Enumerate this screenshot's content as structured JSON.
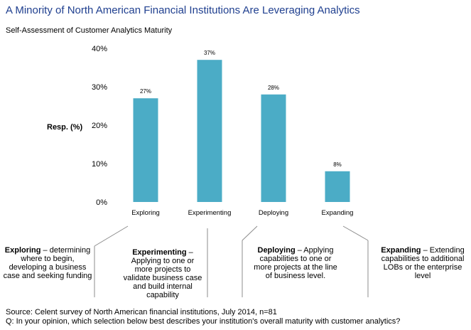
{
  "title": "A Minority of North American Financial Institutions Are Leveraging Analytics",
  "subtitle": "Self-Assessment of Customer Analytics Maturity",
  "chart_data": {
    "type": "bar",
    "categories": [
      "Exploring",
      "Experimenting",
      "Deploying",
      "Expanding"
    ],
    "values": [
      27,
      37,
      28,
      8
    ],
    "data_labels": [
      "27%",
      "37%",
      "28%",
      "8%"
    ],
    "ylabel": "Resp. (%)",
    "ylim": [
      0,
      40
    ],
    "yticks": [
      0,
      10,
      20,
      30,
      40
    ],
    "ytick_labels": [
      "0%",
      "10%",
      "20%",
      "30%",
      "40%"
    ],
    "grid": false,
    "bar_color": "#4bacc6"
  },
  "descriptions": [
    {
      "term": "Exploring",
      "text": " – determining where to begin, developing  a business case and seeking funding"
    },
    {
      "term": "Experimenting",
      "text": " – Applying to one or more projects to validate business case and build internal capability"
    },
    {
      "term": "Deploying",
      "text": " – Applying capabilities to one or more projects at the line of business level."
    },
    {
      "term": "Expanding",
      "text": " – Extending capabilities to additional LOBs or the enterprise level"
    }
  ],
  "source": {
    "line1": "Source: Celent survey of North American financial institutions, July 2014, n=81",
    "line2": "Q: In your opinion, which selection below best describes your institution's overall maturity with customer analytics?"
  }
}
